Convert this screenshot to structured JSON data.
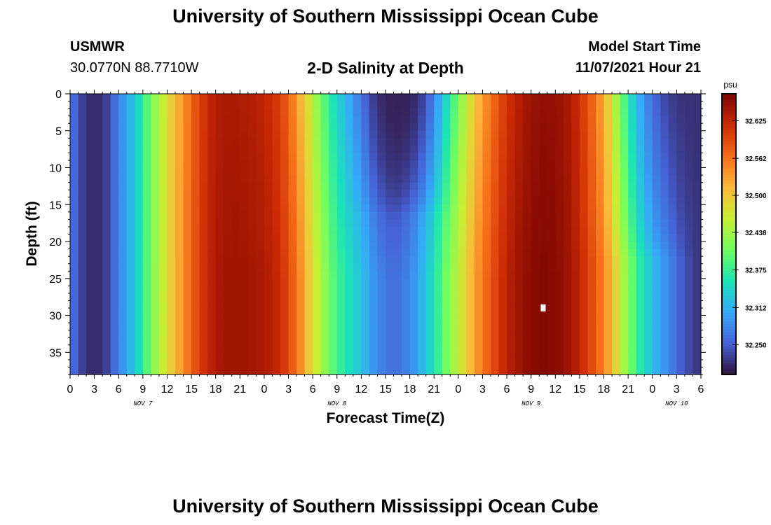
{
  "header": {
    "title": "University of Southern Mississippi Ocean Cube",
    "station": "USMWR",
    "coordinates": "30.0770N  88.7710W",
    "subtitle": "2-D Salinity at Depth",
    "model_start_label": "Model Start Time",
    "model_start_value": "11/07/2021 Hour 21"
  },
  "footer": {
    "title": "University of Southern Mississippi Ocean Cube"
  },
  "chart_data": {
    "type": "heatmap",
    "title": "2-D Salinity at Depth",
    "xlabel": "Forecast Time(Z)",
    "ylabel": "Depth (ft)",
    "x_tick_labels": [
      "0",
      "3",
      "6",
      "9",
      "12",
      "15",
      "18",
      "21",
      "0",
      "3",
      "6",
      "9",
      "12",
      "15",
      "18",
      "21",
      "0",
      "3",
      "6",
      "9",
      "12",
      "15",
      "18",
      "21",
      "0",
      "3",
      "6"
    ],
    "x_date_labels": [
      {
        "label": "NOV 7",
        "at_tick": 4
      },
      {
        "label": "NOV 8",
        "at_tick": 12
      },
      {
        "label": "NOV 9",
        "at_tick": 20
      },
      {
        "label": "NOV 10",
        "at_tick": 26
      }
    ],
    "x_range_hours": [
      0,
      78
    ],
    "y_ticks": [
      0,
      5,
      10,
      15,
      20,
      25,
      30,
      35
    ],
    "y_range_ft": [
      0,
      38
    ],
    "y_inverted": true,
    "colorbar": {
      "units": "psu",
      "ticks": [
        32.25,
        32.312,
        32.375,
        32.438,
        32.5,
        32.562,
        32.625
      ],
      "tick_labels": [
        "32.250",
        "32.312",
        "32.375",
        "32.438",
        "32.500",
        "32.562",
        "32.625"
      ],
      "range": [
        32.2,
        32.67
      ],
      "colors": [
        "#30123b",
        "#4662d7",
        "#36aaf9",
        "#1ae4b6",
        "#72fe5e",
        "#c8ef34",
        "#faba39",
        "#f66b19",
        "#cb2a04",
        "#7a0403"
      ]
    },
    "salinity_surface_profile": [
      [
        0,
        32.27
      ],
      [
        1.5,
        32.23
      ],
      [
        3,
        32.21
      ],
      [
        4.5,
        32.23
      ],
      [
        6,
        32.275
      ],
      [
        8,
        32.33
      ],
      [
        10,
        32.41
      ],
      [
        12,
        32.48
      ],
      [
        14,
        32.54
      ],
      [
        16,
        32.6
      ],
      [
        18,
        32.635
      ],
      [
        20,
        32.64
      ],
      [
        22,
        32.635
      ],
      [
        24,
        32.625
      ],
      [
        26,
        32.6
      ],
      [
        28,
        32.54
      ],
      [
        30,
        32.45
      ],
      [
        32,
        32.37
      ],
      [
        34,
        32.32
      ],
      [
        36,
        32.28
      ],
      [
        38,
        32.23
      ],
      [
        40,
        32.21
      ],
      [
        42,
        32.23
      ],
      [
        44,
        32.28
      ],
      [
        46,
        32.35
      ],
      [
        48,
        32.42
      ],
      [
        50,
        32.5
      ],
      [
        52,
        32.56
      ],
      [
        54,
        32.61
      ],
      [
        56,
        32.64
      ],
      [
        58,
        32.655
      ],
      [
        60,
        32.655
      ],
      [
        62,
        32.64
      ],
      [
        64,
        32.6
      ],
      [
        66,
        32.55
      ],
      [
        68,
        32.46
      ],
      [
        70,
        32.38
      ],
      [
        72,
        32.32
      ],
      [
        74,
        32.28
      ],
      [
        76,
        32.24
      ],
      [
        78,
        32.22
      ]
    ],
    "low_salinity_plumes": [
      {
        "center_hour": 41,
        "half_width_hours": 4,
        "bottom_depth_ft": 16,
        "min_value": 32.21
      },
      {
        "center_hour": 77,
        "half_width_hours": 7,
        "bottom_depth_ft": 22,
        "min_value": 32.22
      }
    ],
    "deep_layer": {
      "center_hour": 40,
      "half_width_hours": 14,
      "offset_psu": 0.05
    }
  }
}
